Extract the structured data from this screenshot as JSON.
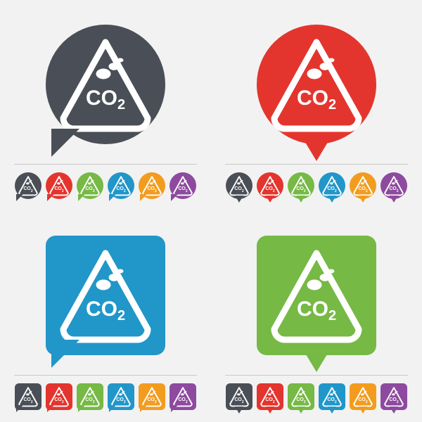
{
  "icon": {
    "label_main": "CO",
    "label_sub": "2",
    "semantic": "co2-warning-icon"
  },
  "colors": {
    "dark": "#4a4f57",
    "red": "#e3352e",
    "blue": "#2196c9",
    "green": "#76b945",
    "orange": "#f29c1f",
    "purple": "#8d4a9e",
    "bg": "#f2f2f2",
    "divider": "#c8c8c8"
  },
  "quadrants": [
    {
      "shape": "circle",
      "tail": "speech",
      "color": "dark"
    },
    {
      "shape": "circle",
      "tail": "pointer",
      "color": "red"
    },
    {
      "shape": "square",
      "tail": "speech",
      "color": "blue"
    },
    {
      "shape": "square",
      "tail": "pointer",
      "color": "green"
    }
  ],
  "small_order": [
    "dark",
    "red",
    "green",
    "blue",
    "orange",
    "purple"
  ]
}
